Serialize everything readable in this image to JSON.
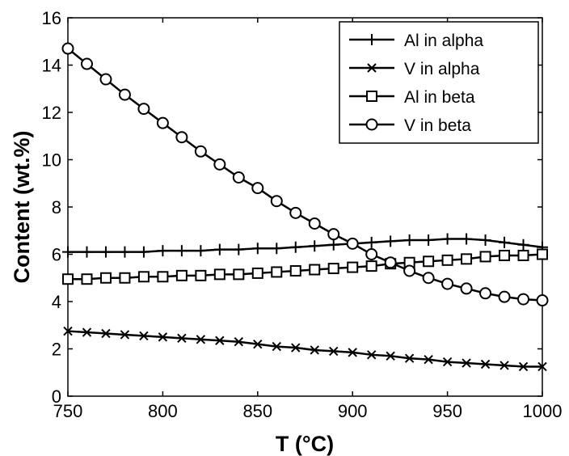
{
  "chart_data": {
    "type": "line",
    "title": "",
    "xlabel": "T (°C)",
    "ylabel": "Content (wt.%)",
    "xlim": [
      750,
      1000
    ],
    "ylim": [
      0,
      16
    ],
    "xticks": [
      750,
      800,
      850,
      900,
      950,
      1000
    ],
    "yticks": [
      0,
      2,
      4,
      6,
      8,
      10,
      12,
      14,
      16
    ],
    "grid": false,
    "legend_position": "top-right",
    "x": [
      750,
      760,
      770,
      780,
      790,
      800,
      810,
      820,
      830,
      840,
      850,
      860,
      870,
      880,
      890,
      900,
      910,
      920,
      930,
      940,
      950,
      960,
      970,
      980,
      990,
      1000
    ],
    "series": [
      {
        "name": "Al in alpha",
        "marker": "plus",
        "values": [
          6.1,
          6.1,
          6.1,
          6.1,
          6.1,
          6.15,
          6.15,
          6.15,
          6.2,
          6.2,
          6.25,
          6.25,
          6.3,
          6.35,
          6.4,
          6.45,
          6.5,
          6.55,
          6.6,
          6.6,
          6.65,
          6.65,
          6.6,
          6.5,
          6.4,
          6.3
        ]
      },
      {
        "name": "V in alpha",
        "marker": "x",
        "values": [
          2.75,
          2.7,
          2.65,
          2.6,
          2.55,
          2.5,
          2.45,
          2.4,
          2.35,
          2.3,
          2.2,
          2.1,
          2.05,
          1.95,
          1.9,
          1.85,
          1.75,
          1.7,
          1.6,
          1.55,
          1.45,
          1.4,
          1.35,
          1.3,
          1.25,
          1.25
        ]
      },
      {
        "name": "Al in beta",
        "marker": "square",
        "values": [
          4.95,
          4.95,
          5.0,
          5.0,
          5.05,
          5.05,
          5.1,
          5.1,
          5.15,
          5.15,
          5.2,
          5.25,
          5.3,
          5.35,
          5.4,
          5.45,
          5.5,
          5.6,
          5.65,
          5.7,
          5.75,
          5.8,
          5.9,
          5.95,
          5.95,
          6.0
        ]
      },
      {
        "name": "V in beta",
        "marker": "circle",
        "values": [
          14.7,
          14.05,
          13.4,
          12.75,
          12.15,
          11.55,
          10.95,
          10.35,
          9.8,
          9.25,
          8.8,
          8.25,
          7.75,
          7.3,
          6.85,
          6.45,
          6.0,
          5.65,
          5.3,
          5.0,
          4.75,
          4.55,
          4.35,
          4.2,
          4.1,
          4.05
        ]
      }
    ],
    "colors": {
      "line": "#000000",
      "background": "#ffffff"
    }
  }
}
